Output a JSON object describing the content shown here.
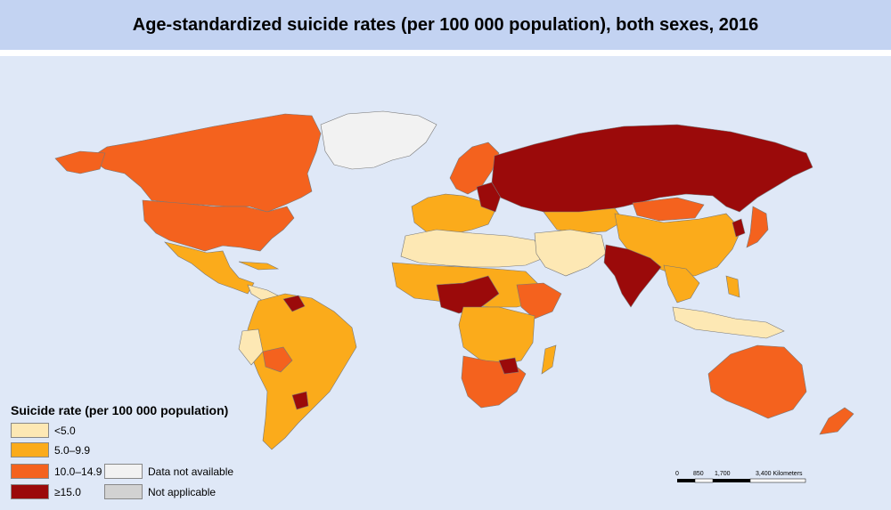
{
  "title": "Age-standardized suicide rates (per 100 000 population), both sexes, 2016",
  "legend": {
    "title": "Suicide rate (per 100 000 population)",
    "items": [
      {
        "label": "<5.0",
        "color": "#fde8b4"
      },
      {
        "label": "5.0–9.9",
        "color": "#fbab1b"
      },
      {
        "label": "10.0–14.9",
        "color": "#f4621e"
      },
      {
        "label": "≥15.0",
        "color": "#9b0a0a"
      },
      {
        "label": "Data not available",
        "color": "#f2f2f2"
      },
      {
        "label": "Not applicable",
        "color": "#d2d2d2"
      }
    ]
  },
  "scale_bar": {
    "ticks": [
      "0",
      "850",
      "1,700",
      "3,400 Kilometers"
    ]
  },
  "colors": {
    "ocean": "#dfe8f7",
    "title_bg": "#c3d3f2",
    "low": "#fde8b4",
    "mid": "#fbab1b",
    "high": "#f4621e",
    "very_high": "#9b0a0a",
    "na": "#f2f2f2"
  }
}
